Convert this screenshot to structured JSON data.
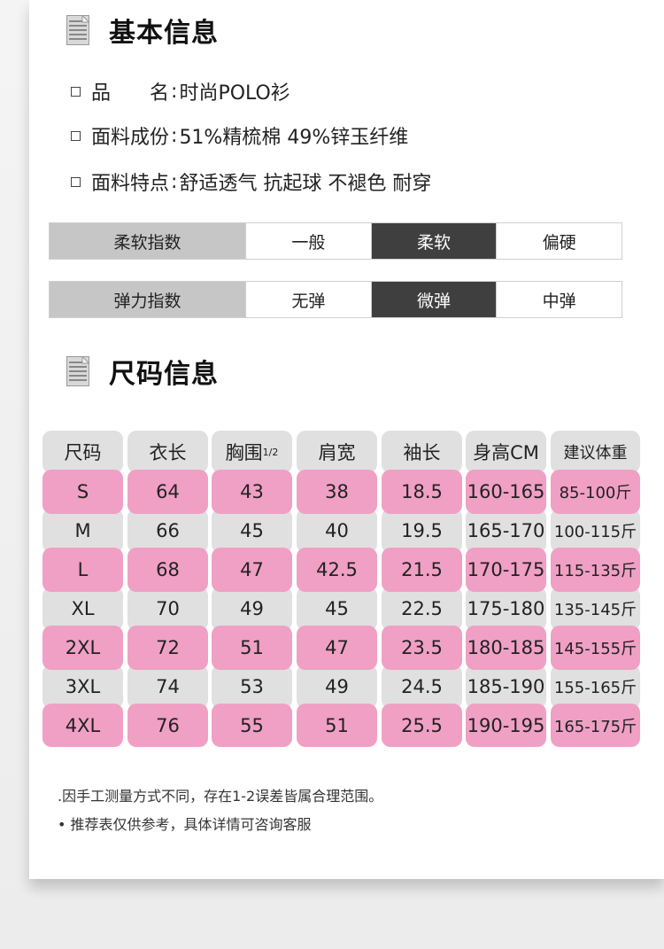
{
  "basic_info": {
    "title": "基本信息",
    "lines": [
      {
        "label": "品　　名",
        "value": "时尚POLO衫"
      },
      {
        "label": "面料成份",
        "value": "51%精梳棉 49%锌玉纤维"
      },
      {
        "label": "面料特点",
        "value": "舒适透气 抗起球 不褪色 耐穿"
      }
    ]
  },
  "ratings": [
    {
      "name": "柔软指数",
      "options": [
        "一般",
        "柔软",
        "偏硬"
      ],
      "selected": 1
    },
    {
      "name": "弹力指数",
      "options": [
        "无弹",
        "微弹",
        "中弹"
      ],
      "selected": 1
    }
  ],
  "size_info": {
    "title": "尺码信息",
    "headers": [
      "尺码",
      "衣长",
      "胸围",
      "肩宽",
      "袖长",
      "身高CM",
      "建议体重"
    ],
    "chest_suffix": "1/2",
    "rows": [
      [
        "S",
        "64",
        "43",
        "38",
        "18.5",
        "160-165",
        "85-100斤"
      ],
      [
        "M",
        "66",
        "45",
        "40",
        "19.5",
        "165-170",
        "100-115斤"
      ],
      [
        "L",
        "68",
        "47",
        "42.5",
        "21.5",
        "170-175",
        "115-135斤"
      ],
      [
        "XL",
        "70",
        "49",
        "45",
        "22.5",
        "175-180",
        "135-145斤"
      ],
      [
        "2XL",
        "72",
        "51",
        "47",
        "23.5",
        "180-185",
        "145-155斤"
      ],
      [
        "3XL",
        "74",
        "53",
        "49",
        "24.5",
        "185-190",
        "155-165斤"
      ],
      [
        "4XL",
        "76",
        "55",
        "51",
        "25.5",
        "190-195",
        "165-175斤"
      ]
    ]
  },
  "notes": [
    ".因手工测量方式不同，存在1-2误差皆属合理范围。",
    "• 推荐表仅供参考，具体详情可咨询客服"
  ],
  "colors": {
    "pink": "#f0a0c4",
    "gray": "#e0e0e0",
    "dark": "#3f3f3f",
    "label_gray": "#c6c6c6"
  }
}
